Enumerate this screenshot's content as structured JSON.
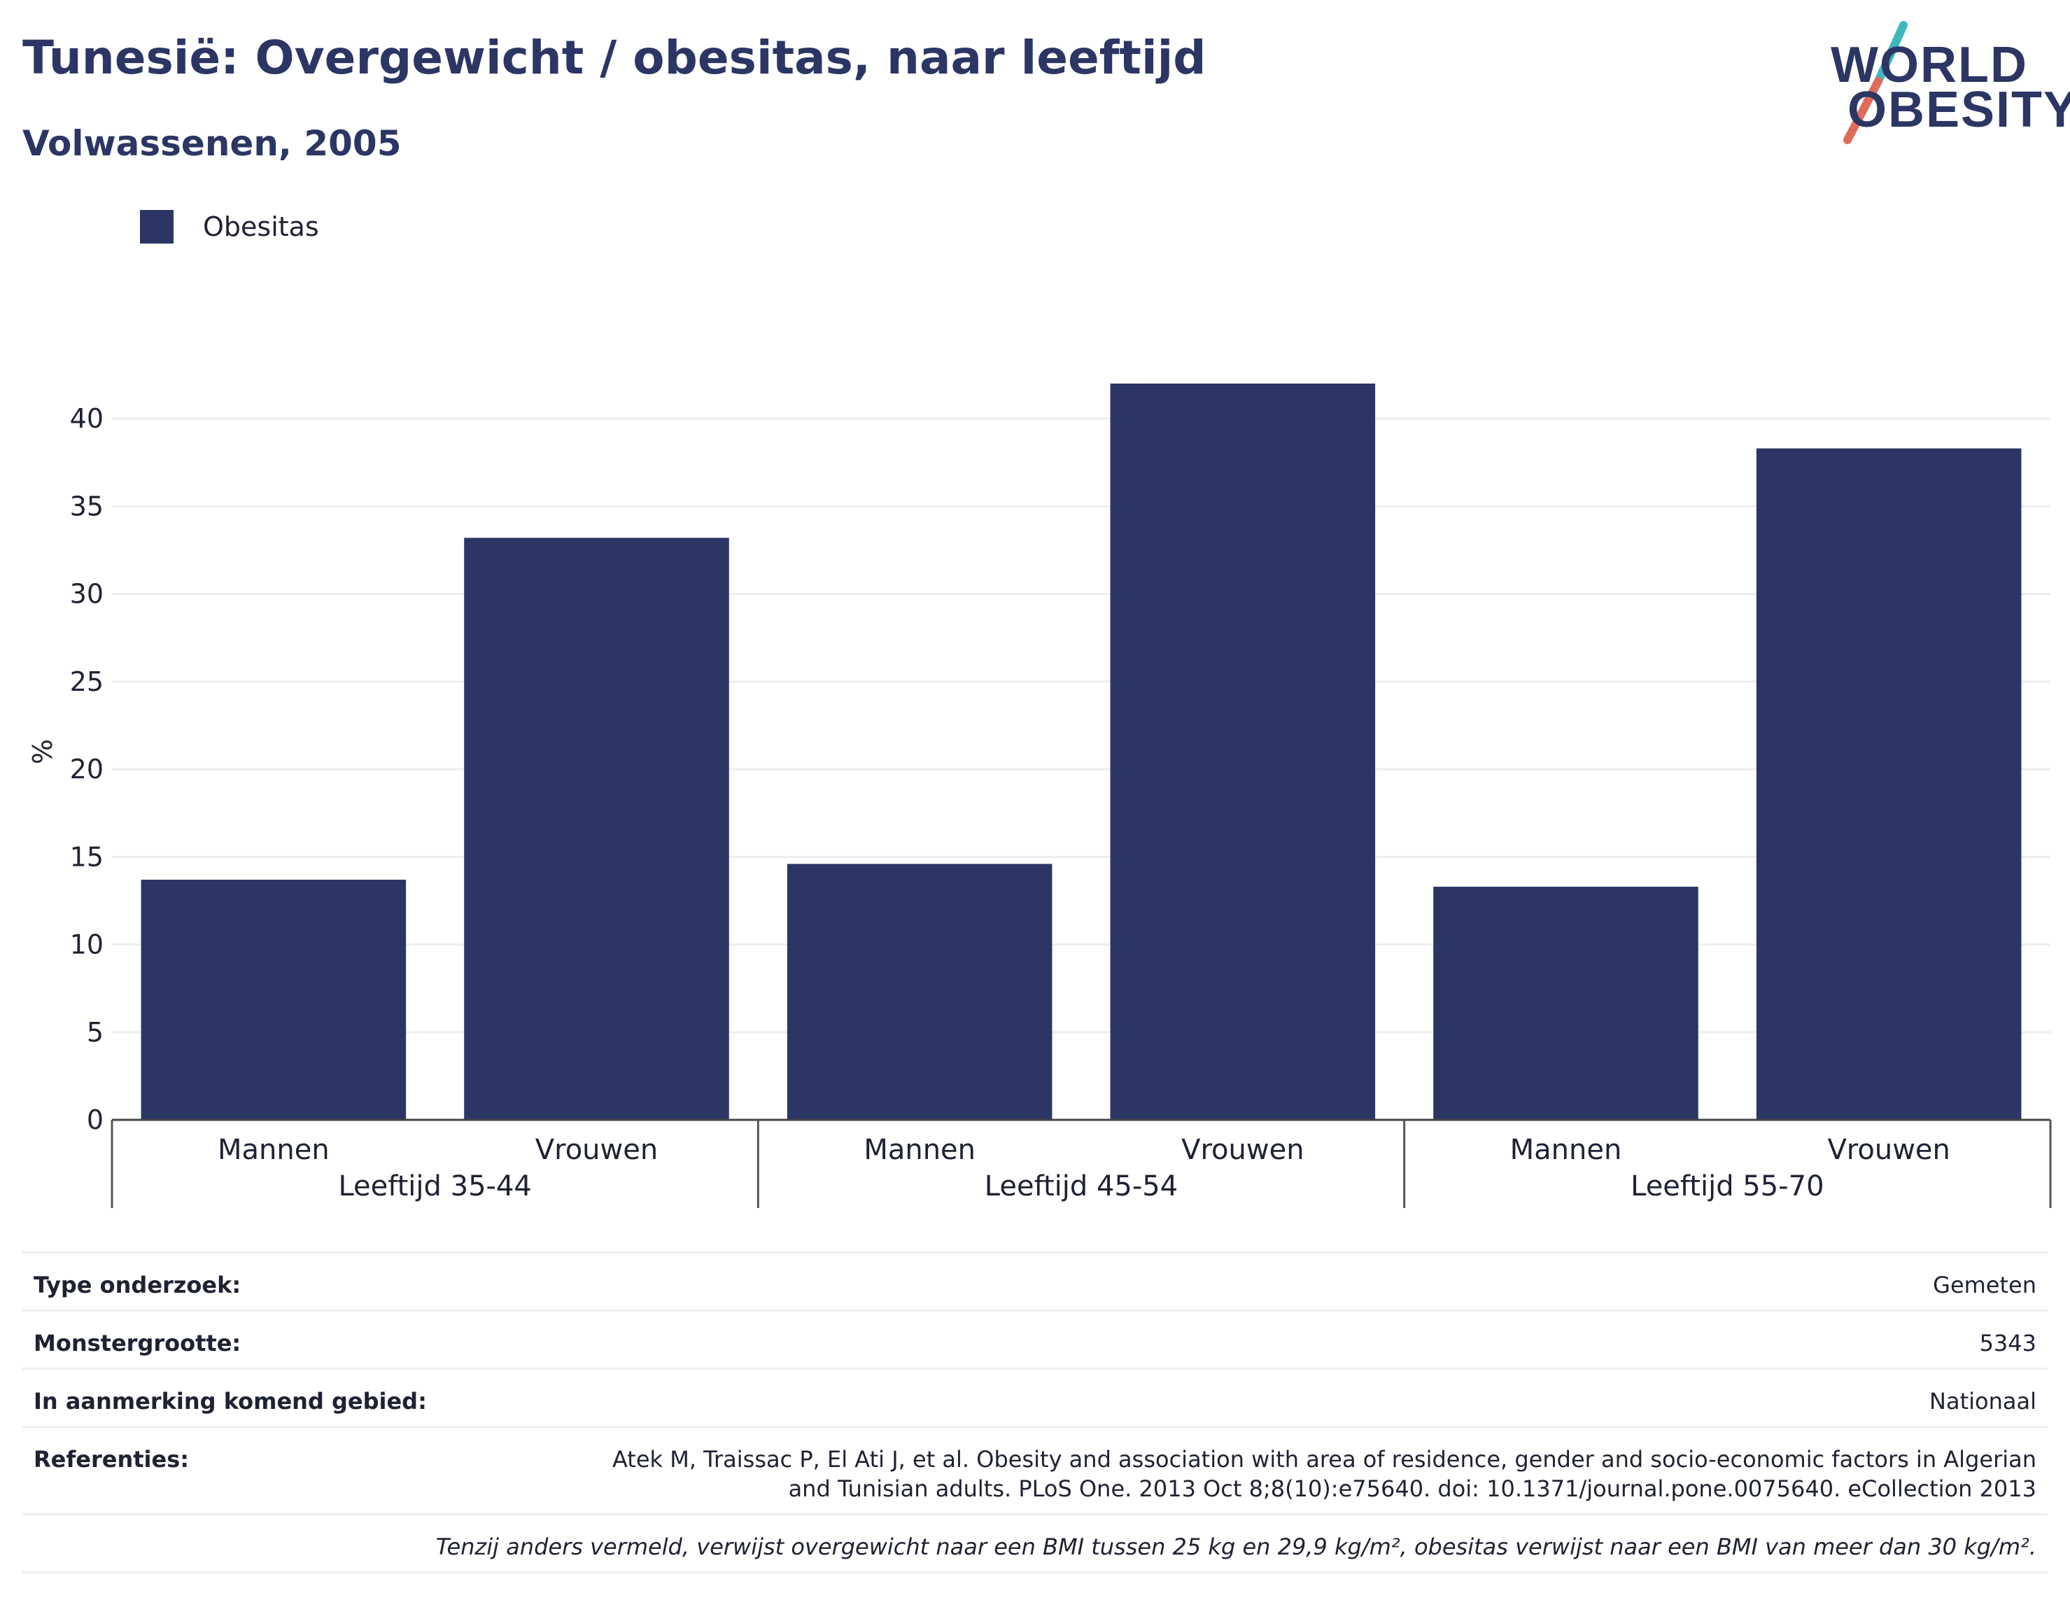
{
  "header": {
    "title": "Tunesië: Overgewicht / obesitas, naar leeftijd",
    "subtitle": "Volwassenen, 2005"
  },
  "logo": {
    "line1": "WORLD",
    "line2": "OBESITY",
    "colors": {
      "text": "#2b3664",
      "accent_teal": "#3fb8bd",
      "accent_coral": "#e06b5b"
    }
  },
  "legend": {
    "items": [
      {
        "label": "Obesitas",
        "color": "#2b3664"
      }
    ],
    "placement": "top-left"
  },
  "chart_data": {
    "type": "bar",
    "ylabel": "%",
    "ylim": [
      0,
      42
    ],
    "yticks": [
      0,
      5,
      10,
      15,
      20,
      25,
      30,
      35,
      40
    ],
    "grid": true,
    "groups": [
      "Leeftijd 35-44",
      "Leeftijd 45-54",
      "Leeftijd 55-70"
    ],
    "categories": [
      "Mannen",
      "Vrouwen",
      "Mannen",
      "Vrouwen",
      "Mannen",
      "Vrouwen"
    ],
    "series": [
      {
        "name": "Obesitas",
        "color": "#2b3664",
        "values": [
          13.7,
          33.2,
          14.6,
          42.0,
          13.3,
          38.3
        ]
      }
    ]
  },
  "info": {
    "rows": [
      {
        "key": "Type onderzoek:",
        "value": "Gemeten"
      },
      {
        "key": "Monstergrootte:",
        "value": "5343"
      },
      {
        "key": "In aanmerking komend gebied:",
        "value": "Nationaal"
      },
      {
        "key": "Referenties:",
        "value": "Atek M, Traissac P, El Ati J, et al. Obesity and association with area of residence, gender and socio-economic factors in Algerian and Tunisian adults. PLoS One. 2013 Oct 8;8(10):e75640. doi: 10.1371/journal.pone.0075640. eCollection 2013"
      }
    ],
    "footnote": "Tenzij anders vermeld, verwijst overgewicht naar een BMI tussen 25 kg en 29,9 kg/m², obesitas verwijst naar een BMI van meer dan 30 kg/m²."
  }
}
